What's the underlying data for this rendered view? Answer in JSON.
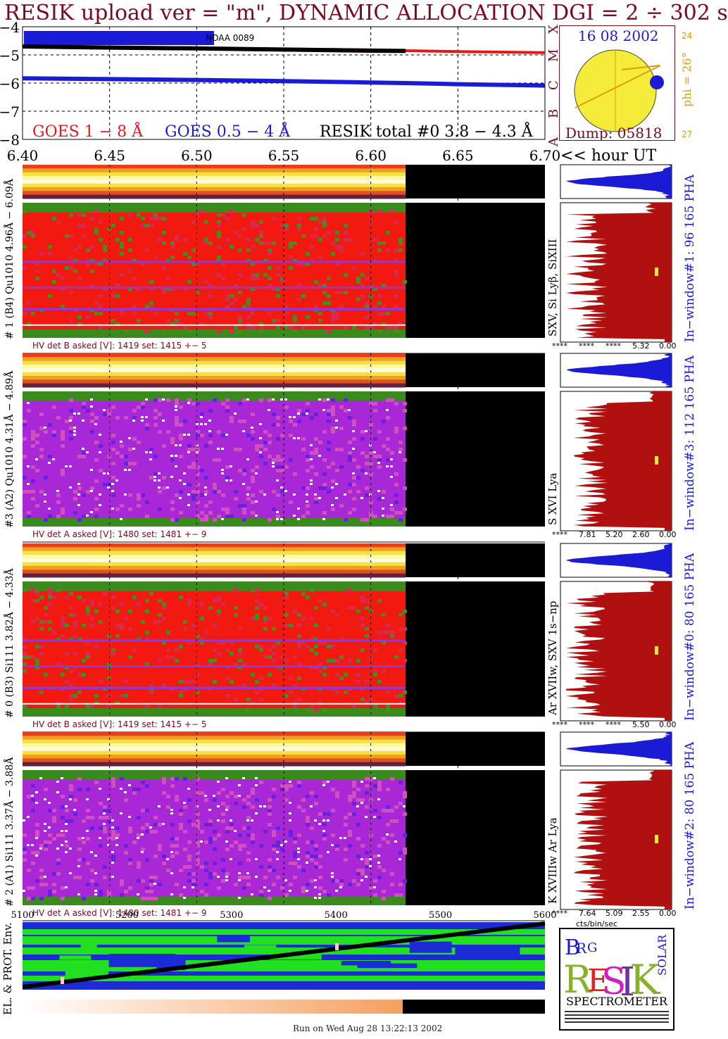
{
  "title": "RESIK upload ver = \"m\", DYNAMIC ALLOCATION  DGI =   2 ÷ 302 s",
  "goes_panel": {
    "y_ticks": [
      "−4",
      "−5",
      "−6",
      "−7",
      "−8"
    ],
    "class_letters": [
      "X",
      "M",
      "C",
      "B",
      "A"
    ],
    "region_label": "NOAA 0089",
    "legend_goes_long": "GOES 1 − 8 Å",
    "legend_goes_short": "GOES 0.5 − 4 Å",
    "legend_resik": "RESIK total #0  3.8 − 4.3 Å",
    "color_long": "#e8161b",
    "color_short": "#1b1bd6",
    "color_resik": "#000000"
  },
  "hour_axis": {
    "ticks": [
      "6.40",
      "6.45",
      "6.50",
      "6.55",
      "6.60",
      "6.65",
      "6.70"
    ],
    "unit_label": "<< hour UT"
  },
  "sun_panel": {
    "date": "16 08 2002",
    "phi": "phi = 26°",
    "edge_top": "24",
    "edge_bottom": "27",
    "dump": "Dump: 05818"
  },
  "channels": [
    {
      "left_label": "# 1 (B4) Qu1010 4.96Å − 6.09Å",
      "line_label": "SXV, Si Lyβ, SiXIII",
      "window_label": "In−window#1:  96 165 PHA",
      "hv_text": "HV det B asked [V]:  1419 set:  1415  +−   5",
      "pha_ticks": [
        "****",
        "****",
        "****",
        "5.32",
        "0.00"
      ],
      "map_type": "red"
    },
    {
      "left_label": "#3 (A2) Qu1010  4.31Å − 4.89Å",
      "line_label": "S XVI Lya",
      "window_label": "In−window#3:  112 165 PHA",
      "hv_text": "HV det A asked [V]:  1480 set:  1481  +−   9",
      "pha_ticks": [
        "****",
        "7.81",
        "5.20",
        "2.60",
        "0.00"
      ],
      "map_type": "purple"
    },
    {
      "left_label": "# 0 (B3) Si111  3.82Å − 4.33Å",
      "line_label": "Ar XVIIw,  SXV 1s−np",
      "window_label": "In−window#0:  80 165 PHA",
      "hv_text": "HV det B asked [V]:  1419 set:  1415  +−   5",
      "pha_ticks": [
        "****",
        "****",
        "****",
        "5.50",
        "0.00"
      ],
      "map_type": "red"
    },
    {
      "left_label": "# 2 (A1) Si111  3.37Å − 3.88Å",
      "line_label": "K XVIIIw  Ar Lya",
      "window_label": "In−window#2:  80 165 PHA",
      "hv_text": "HV det A asked [V]:  1480 set:  1481  +−   9",
      "pha_ticks": [
        "****",
        "7.64",
        "5.09",
        "2.55",
        "0.00"
      ],
      "map_type": "purple"
    }
  ],
  "pha_unit": "cts/bin/sec",
  "bottom_axis": {
    "ticks": [
      "5100",
      "5200",
      "5300",
      "5400",
      "5500",
      "5600"
    ],
    "label": "EL. & PROT. Env."
  },
  "logo": {
    "letters": [
      "B",
      "R",
      "G",
      "R",
      "E",
      "S",
      "I",
      "K",
      "SOLAR"
    ],
    "caption": "SPECTROMETER"
  },
  "footer": "Run on Wed Aug 28 13:22:13 2002",
  "chart_data": [
    {
      "type": "line",
      "title": "",
      "ylabel": "",
      "x": [
        6.4,
        6.45,
        6.5,
        6.55,
        6.6,
        6.62,
        6.65,
        6.7
      ],
      "xlim": [
        6.4,
        6.7
      ],
      "ylim": [
        -8,
        -4
      ],
      "series": [
        {
          "name": "GOES 1 − 8 Å",
          "values": [
            -4.72,
            -4.74,
            -4.76,
            -4.79,
            -4.82,
            -4.85,
            -4.88,
            -4.92
          ]
        },
        {
          "name": "GOES 0.5 − 4 Å",
          "values": [
            -5.83,
            -5.86,
            -5.89,
            -5.93,
            -5.98,
            -6.0,
            -6.04,
            -6.09
          ]
        },
        {
          "name": "RESIK total #0  3.8 − 4.3 Å",
          "values": [
            -4.7,
            -4.74,
            -4.77,
            -4.81,
            -4.85,
            -4.86,
            null,
            null
          ]
        }
      ]
    },
    {
      "type": "heatmap",
      "xlabel": "<< hour UT",
      "xlim": [
        6.4,
        6.7
      ],
      "data_end_hour": 6.62,
      "channels": [
        "#1",
        "#3",
        "#0",
        "#2"
      ]
    }
  ]
}
